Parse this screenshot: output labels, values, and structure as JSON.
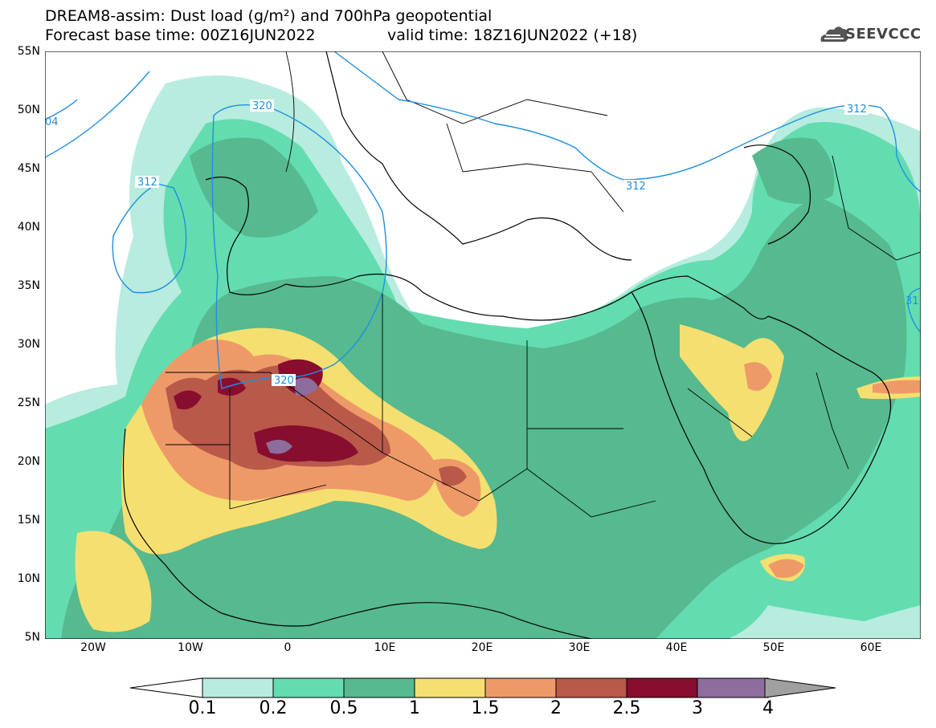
{
  "header": {
    "title_line1": "DREAM8-assim: Dust load (g/m²) and 700hPa geopotential",
    "base_time": "Forecast base time: 00Z16JUN2022",
    "valid_time": "valid time: 18Z16JUN2022 (+18)",
    "logo_text": "SEEVCCC",
    "logo_icon": "cloud-logo-icon"
  },
  "map": {
    "lat_labels": [
      "55N",
      "50N",
      "45N",
      "40N",
      "35N",
      "30N",
      "25N",
      "20N",
      "15N",
      "10N",
      "5N"
    ],
    "lon_labels": [
      "20W",
      "10W",
      "0",
      "10E",
      "20E",
      "30E",
      "40E",
      "50E",
      "60E"
    ],
    "lat_range": [
      5,
      55
    ],
    "lon_range": [
      -25,
      65
    ],
    "contours": [
      {
        "value": "320",
        "label": "320"
      },
      {
        "value": "312",
        "label": "312"
      },
      {
        "value": "304",
        "label": "04"
      },
      {
        "value": "312",
        "label": "31"
      }
    ]
  },
  "colorbar": {
    "levels": [
      "0.1",
      "0.2",
      "0.5",
      "1",
      "1.5",
      "2",
      "2.5",
      "3",
      "4"
    ],
    "colors": [
      "#b7ecdf",
      "#63dcb0",
      "#56b98f",
      "#f5df70",
      "#ee9a68",
      "#b9594a",
      "#870e2f",
      "#8d6c9e"
    ],
    "below_color": "#ffffff",
    "above_color": "#a0a0a0"
  }
}
